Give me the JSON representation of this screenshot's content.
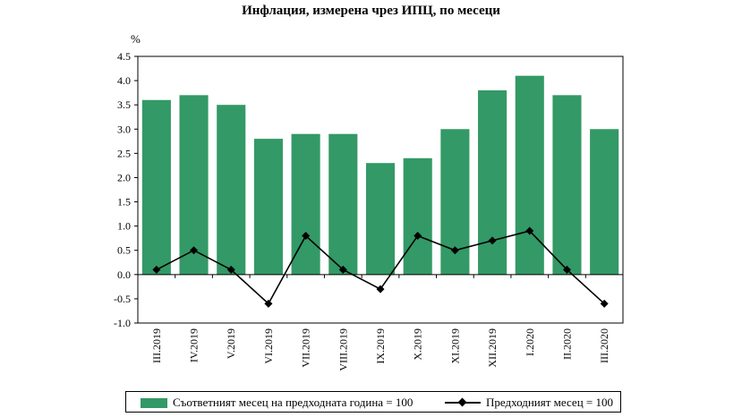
{
  "chart_data": {
    "type": "bar",
    "title": "Инфлация, измерена чрез ИПЦ, по месеци",
    "unit_label": "%",
    "categories": [
      "III.2019",
      "IV.2019",
      "V.2019",
      "VI.2019",
      "VII.2019",
      "VIII.2019",
      "IX.2019",
      "X.2019",
      "XI.2019",
      "XII.2019",
      "I.2020",
      "II.2020",
      "III.2020"
    ],
    "series": [
      {
        "name": "Съответният месец на предходната година = 100",
        "kind": "bar",
        "color": "#339966",
        "values": [
          3.6,
          3.7,
          3.5,
          2.8,
          2.9,
          2.9,
          2.3,
          2.4,
          3.0,
          3.8,
          4.1,
          3.7,
          3.0
        ]
      },
      {
        "name": "Предходният месец = 100",
        "kind": "line",
        "color": "#000000",
        "marker": "diamond",
        "values": [
          0.1,
          0.5,
          0.1,
          -0.6,
          0.8,
          0.1,
          -0.3,
          0.8,
          0.5,
          0.7,
          0.9,
          0.1,
          -0.6
        ]
      }
    ],
    "ylim": [
      -1.0,
      4.5
    ],
    "yticks": [
      "-1.0",
      "-0.5",
      "0.0",
      "0.5",
      "1.0",
      "1.5",
      "2.0",
      "2.5",
      "3.0",
      "3.5",
      "4.0",
      "4.5"
    ],
    "grid": false,
    "legend_placement": "bottom"
  }
}
